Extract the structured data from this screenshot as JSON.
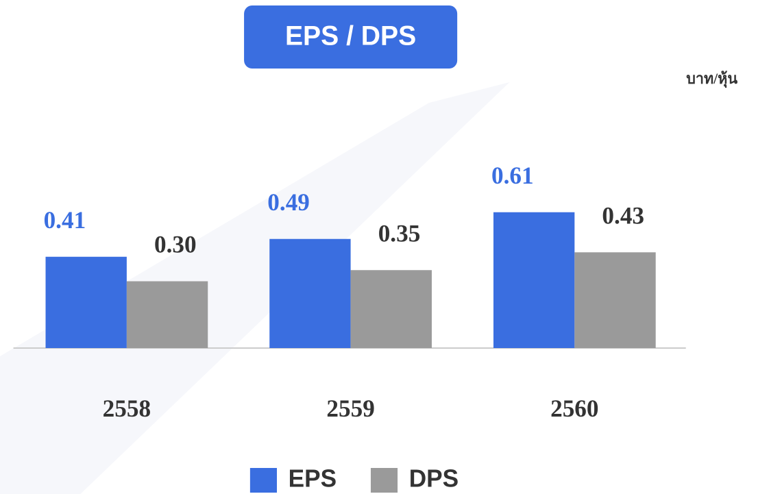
{
  "chart_data": {
    "type": "bar",
    "title": "EPS / DPS",
    "ylabel": "บาท/หุ้น",
    "categories": [
      "2558",
      "2559",
      "2560"
    ],
    "series": [
      {
        "name": "EPS",
        "color": "#3a6ee0",
        "values": [
          0.41,
          0.49,
          0.61
        ]
      },
      {
        "name": "DPS",
        "color": "#9a9a9a",
        "values": [
          0.3,
          0.35,
          0.43
        ],
        "value_labels": [
          "0.30",
          "0.35",
          "0.43"
        ]
      }
    ],
    "ylim": [
      0,
      1
    ]
  }
}
